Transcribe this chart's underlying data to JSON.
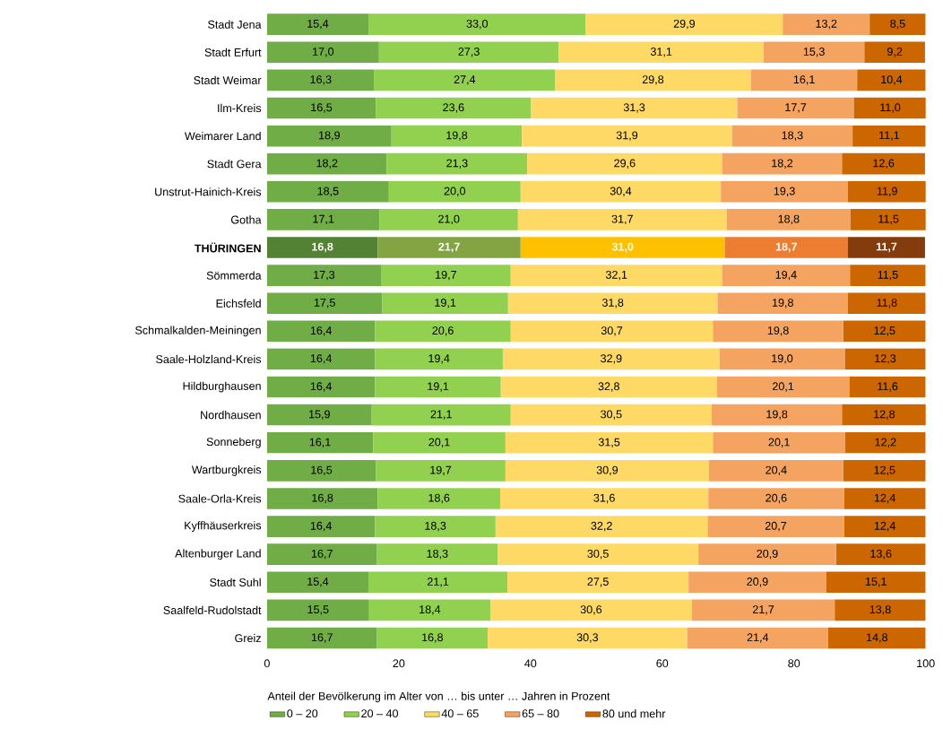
{
  "chart_data": {
    "type": "bar",
    "orientation": "horizontal",
    "stacked": true,
    "xlabel": "Anteil der Bevölkerung im Alter von … bis unter … Jahren in Prozent",
    "categories": [
      "Stadt Jena",
      "Stadt Erfurt",
      "Stadt Weimar",
      "Ilm-Kreis",
      "Weimarer Land",
      "Stadt Gera",
      "Unstrut-Hainich-Kreis",
      "Gotha",
      "**THÜRINGEN**",
      "Sömmerda",
      "Eichsfeld",
      "Schmalkalden-Meiningen",
      "Saale-Holzland-Kreis",
      "Hildburghausen",
      "Nordhausen",
      "Sonneberg",
      "Wartburgkreis",
      "Saale-Orla-Kreis",
      "Kyffhäuserkreis",
      "Altenburger Land",
      "Stadt Suhl",
      "Saalfeld-Rudolstadt",
      "Greiz"
    ],
    "series": [
      {
        "name": "0 – 20",
        "color": "#70ad47",
        "colors": [
          "#70ad47",
          "#70ad47",
          "#70ad47",
          "#70ad47",
          "#70ad47",
          "#70ad47",
          "#70ad47",
          "#70ad47",
          "#548235",
          "#70ad47",
          "#70ad47",
          "#70ad47",
          "#70ad47",
          "#70ad47",
          "#70ad47",
          "#70ad47",
          "#70ad47",
          "#70ad47",
          "#70ad47",
          "#70ad47",
          "#70ad47",
          "#70ad47",
          "#70ad47"
        ],
        "values": [
          15.4,
          17.0,
          16.3,
          16.5,
          18.9,
          18.2,
          18.5,
          17.1,
          16.8,
          17.3,
          17.5,
          16.4,
          16.4,
          16.4,
          15.9,
          16.1,
          16.5,
          16.8,
          16.4,
          16.7,
          15.4,
          15.5,
          16.7
        ],
        "value_labels": [
          "15,4",
          "17,0",
          "16,3",
          "16,5",
          "18,9",
          "18,2",
          "18,5",
          "17,1",
          "16,8",
          "17,3",
          "17,5",
          "16,4",
          "16,4",
          "16,4",
          "15,9",
          "16,1",
          "16,5",
          "16,8",
          "16,4",
          "16,7",
          "15,4",
          "15,5",
          "16,7"
        ]
      },
      {
        "name": "20 – 40",
        "color": "#92d050",
        "colors": [
          "#92d050",
          "#92d050",
          "#92d050",
          "#92d050",
          "#92d050",
          "#92d050",
          "#92d050",
          "#92d050",
          "#84a444",
          "#92d050",
          "#92d050",
          "#92d050",
          "#92d050",
          "#92d050",
          "#92d050",
          "#92d050",
          "#92d050",
          "#92d050",
          "#92d050",
          "#92d050",
          "#92d050",
          "#92d050",
          "#92d050"
        ],
        "values": [
          33.0,
          27.3,
          27.4,
          23.6,
          19.8,
          21.3,
          20.0,
          21.0,
          21.7,
          19.7,
          19.1,
          20.6,
          19.4,
          19.1,
          21.1,
          20.1,
          19.7,
          18.6,
          18.3,
          18.3,
          21.1,
          18.4,
          16.8
        ],
        "value_labels": [
          "33,0",
          "27,3",
          "27,4",
          "23,6",
          "19,8",
          "21,3",
          "20,0",
          "21,0",
          "21,7",
          "19,7",
          "19,1",
          "20,6",
          "19,4",
          "19,1",
          "21,1",
          "20,1",
          "19,7",
          "18,6",
          "18,3",
          "18,3",
          "21,1",
          "18,4",
          "16,8"
        ]
      },
      {
        "name": "40 – 65",
        "color": "#ffd966",
        "colors": [
          "#ffd966",
          "#ffd966",
          "#ffd966",
          "#ffd966",
          "#ffd966",
          "#ffd966",
          "#ffd966",
          "#ffd966",
          "#ffc000",
          "#ffd966",
          "#ffd966",
          "#ffd966",
          "#ffd966",
          "#ffd966",
          "#ffd966",
          "#ffd966",
          "#ffd966",
          "#ffd966",
          "#ffd966",
          "#ffd966",
          "#ffd966",
          "#ffd966",
          "#ffd966"
        ],
        "values": [
          29.9,
          31.1,
          29.8,
          31.3,
          31.9,
          29.6,
          30.4,
          31.7,
          31.0,
          32.1,
          31.8,
          30.7,
          32.9,
          32.8,
          30.5,
          31.5,
          30.9,
          31.6,
          32.2,
          30.5,
          27.5,
          30.6,
          30.3
        ],
        "value_labels": [
          "29,9",
          "31,1",
          "29,8",
          "31,3",
          "31,9",
          "29,6",
          "30,4",
          "31,7",
          "31,0",
          "32,1",
          "31,8",
          "30,7",
          "32,9",
          "32,8",
          "30,5",
          "31,5",
          "30,9",
          "31,6",
          "32,2",
          "30,5",
          "27,5",
          "30,6",
          "30,3"
        ]
      },
      {
        "name": "65 – 80",
        "color": "#f4a460",
        "colors": [
          "#f4a460",
          "#f4a460",
          "#f4a460",
          "#f4a460",
          "#f4a460",
          "#f4a460",
          "#f4a460",
          "#f4a460",
          "#ed7d31",
          "#f4a460",
          "#f4a460",
          "#f4a460",
          "#f4a460",
          "#f4a460",
          "#f4a460",
          "#f4a460",
          "#f4a460",
          "#f4a460",
          "#f4a460",
          "#f4a460",
          "#f4a460",
          "#f4a460",
          "#f4a460"
        ],
        "values": [
          13.2,
          15.3,
          16.1,
          17.7,
          18.3,
          18.2,
          19.3,
          18.8,
          18.7,
          19.4,
          19.8,
          19.8,
          19.0,
          20.1,
          19.8,
          20.1,
          20.4,
          20.6,
          20.7,
          20.9,
          20.9,
          21.7,
          21.4
        ],
        "value_labels": [
          "13,2",
          "15,3",
          "16,1",
          "17,7",
          "18,3",
          "18,2",
          "19,3",
          "18,8",
          "18,7",
          "19,4",
          "19,8",
          "19,8",
          "19,0",
          "20,1",
          "19,8",
          "20,1",
          "20,4",
          "20,6",
          "20,7",
          "20,9",
          "20,9",
          "21,7",
          "21,4"
        ]
      },
      {
        "name": "80 und mehr",
        "color": "#cc6600",
        "colors": [
          "#cc6600",
          "#cc6600",
          "#cc6600",
          "#cc6600",
          "#cc6600",
          "#cc6600",
          "#cc6600",
          "#cc6600",
          "#843c0c",
          "#cc6600",
          "#cc6600",
          "#cc6600",
          "#cc6600",
          "#cc6600",
          "#cc6600",
          "#cc6600",
          "#cc6600",
          "#cc6600",
          "#cc6600",
          "#cc6600",
          "#cc6600",
          "#cc6600",
          "#cc6600"
        ],
        "values": [
          8.5,
          9.2,
          10.4,
          11.0,
          11.1,
          12.6,
          11.9,
          11.5,
          11.7,
          11.5,
          11.8,
          12.5,
          12.3,
          11.6,
          12.8,
          12.2,
          12.5,
          12.4,
          12.4,
          13.6,
          15.1,
          13.8,
          14.8
        ],
        "value_labels": [
          "8,5",
          "9,2",
          "10,4",
          "11,0",
          "11,1",
          "12,6",
          "11,9",
          "11,5",
          "11,7",
          "11,5",
          "11,8",
          "12,5",
          "12,3",
          "11,6",
          "12,8",
          "12,2",
          "12,5",
          "12,4",
          "12,4",
          "13,6",
          "15,1",
          "13,8",
          "14,8"
        ]
      }
    ],
    "xlim": [
      0,
      100
    ],
    "xticks": [
      0,
      20,
      40,
      60,
      80,
      100
    ],
    "grid": false,
    "legend": "bottom"
  }
}
